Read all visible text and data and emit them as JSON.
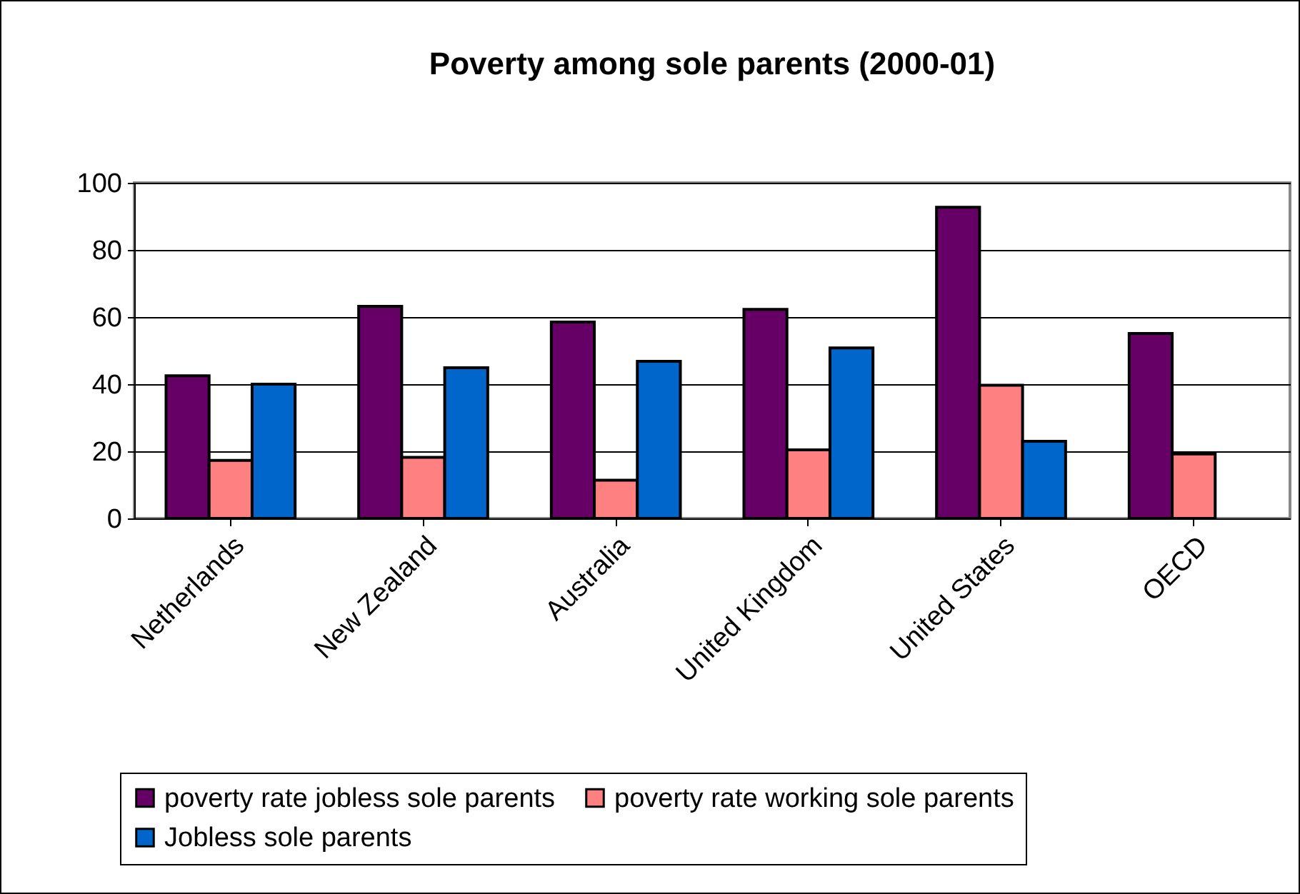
{
  "chart_data": {
    "type": "bar",
    "title": "Poverty among sole parents (2000-01)",
    "categories": [
      "Netherlands",
      "New Zealand",
      "Australia",
      "United Kingdom",
      "United States",
      "OECD"
    ],
    "series": [
      {
        "name": "poverty rate jobless sole parents",
        "color": "#660066",
        "values": [
          42.5,
          63.2,
          58.5,
          62.3,
          92.7,
          55.1
        ]
      },
      {
        "name": "poverty rate working sole parents",
        "color": "#ff8080",
        "values": [
          17.3,
          18.2,
          11.4,
          20.4,
          39.7,
          19.2
        ]
      },
      {
        "name": "Jobless sole parents",
        "color": "#0066cc",
        "values": [
          40,
          44.9,
          46.8,
          50.8,
          23,
          null
        ]
      }
    ],
    "ylim": [
      0,
      100
    ],
    "yticks": [
      0,
      20,
      40,
      60,
      80,
      100
    ],
    "grid": "y",
    "legend": "bottom"
  }
}
